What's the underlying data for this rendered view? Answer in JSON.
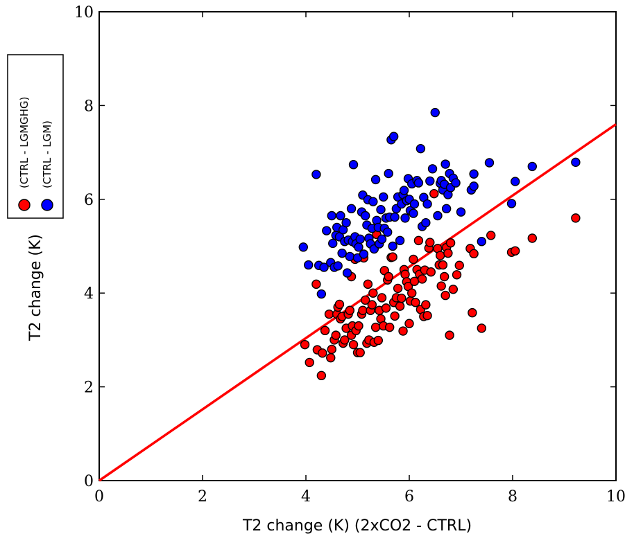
{
  "chart_data": {
    "type": "scatter",
    "xlabel": "T2 change (K) (2xCO2 - CTRL)",
    "ylabel": "T2 change (K)",
    "xlim": [
      0,
      10
    ],
    "ylim": [
      0,
      10
    ],
    "xticks": [
      "0",
      "2",
      "4",
      "6",
      "8",
      "10"
    ],
    "yticks": [
      "0",
      "2",
      "4",
      "6",
      "8",
      "10"
    ],
    "grid": false,
    "legend_placement": "outside-left",
    "fit_line": {
      "x": [
        0,
        10
      ],
      "y": [
        0,
        7.6
      ],
      "color": "#ff0000"
    },
    "series": [
      {
        "name": "(CTRL - LGMGHG)",
        "color": "#ff0000",
        "points": [
          [
            3.98,
            2.9
          ],
          [
            4.07,
            2.52
          ],
          [
            4.2,
            4.19
          ],
          [
            4.22,
            2.79
          ],
          [
            4.3,
            2.24
          ],
          [
            4.32,
            2.72
          ],
          [
            4.37,
            3.2
          ],
          [
            4.45,
            3.55
          ],
          [
            4.48,
            2.62
          ],
          [
            4.5,
            2.8
          ],
          [
            4.55,
            3.0
          ],
          [
            4.58,
            3.1
          ],
          [
            4.6,
            3.55
          ],
          [
            4.62,
            3.7
          ],
          [
            4.65,
            3.76
          ],
          [
            4.67,
            3.45
          ],
          [
            4.7,
            3.5
          ],
          [
            4.72,
            2.93
          ],
          [
            4.75,
            3.0
          ],
          [
            4.78,
            3.25
          ],
          [
            4.82,
            3.55
          ],
          [
            4.85,
            3.63
          ],
          [
            4.88,
            3.1
          ],
          [
            4.88,
            4.35
          ],
          [
            4.9,
            3.3
          ],
          [
            4.92,
            2.9
          ],
          [
            4.95,
            4.72
          ],
          [
            4.97,
            3.2
          ],
          [
            5.0,
            2.73
          ],
          [
            5.02,
            3.3
          ],
          [
            5.05,
            2.73
          ],
          [
            5.08,
            3.55
          ],
          [
            5.1,
            3.63
          ],
          [
            5.12,
            4.75
          ],
          [
            5.15,
            3.85
          ],
          [
            5.18,
            2.93
          ],
          [
            5.2,
            4.19
          ],
          [
            5.22,
            3.0
          ],
          [
            5.25,
            3.63
          ],
          [
            5.28,
            3.75
          ],
          [
            5.3,
            4.0
          ],
          [
            5.32,
            2.95
          ],
          [
            5.35,
            3.27
          ],
          [
            5.37,
            5.25
          ],
          [
            5.4,
            2.99
          ],
          [
            5.42,
            3.63
          ],
          [
            5.45,
            3.45
          ],
          [
            5.47,
            3.9
          ],
          [
            5.5,
            3.3
          ],
          [
            5.52,
            4.48
          ],
          [
            5.55,
            3.68
          ],
          [
            5.58,
            4.28
          ],
          [
            5.6,
            4.35
          ],
          [
            5.62,
            3.27
          ],
          [
            5.65,
            4.76
          ],
          [
            5.68,
            4.77
          ],
          [
            5.7,
            3.8
          ],
          [
            5.72,
            3.51
          ],
          [
            5.75,
            3.9
          ],
          [
            5.78,
            4.1
          ],
          [
            5.82,
            3.72
          ],
          [
            5.85,
            3.89
          ],
          [
            5.88,
            3.19
          ],
          [
            5.9,
            4.5
          ],
          [
            5.92,
            4.4
          ],
          [
            5.95,
            4.24
          ],
          [
            5.98,
            4.14
          ],
          [
            6.0,
            3.35
          ],
          [
            6.02,
            3.83
          ],
          [
            6.05,
            4.0
          ],
          [
            6.08,
            4.72
          ],
          [
            6.1,
            4.25
          ],
          [
            6.12,
            3.8
          ],
          [
            6.15,
            4.5
          ],
          [
            6.18,
            5.12
          ],
          [
            6.2,
            4.4
          ],
          [
            6.22,
            3.65
          ],
          [
            6.25,
            4.3
          ],
          [
            6.28,
            3.5
          ],
          [
            6.3,
            4.49
          ],
          [
            6.32,
            3.75
          ],
          [
            6.35,
            3.52
          ],
          [
            6.38,
            4.96
          ],
          [
            6.4,
            5.08
          ],
          [
            6.42,
            4.45
          ],
          [
            6.48,
            6.12
          ],
          [
            6.55,
            4.95
          ],
          [
            6.58,
            4.6
          ],
          [
            6.6,
            4.8
          ],
          [
            6.62,
            4.15
          ],
          [
            6.65,
            4.6
          ],
          [
            6.68,
            4.35
          ],
          [
            6.7,
            3.95
          ],
          [
            6.72,
            4.97
          ],
          [
            6.75,
            4.85
          ],
          [
            6.78,
            3.1
          ],
          [
            6.8,
            5.07
          ],
          [
            6.85,
            4.08
          ],
          [
            6.92,
            4.39
          ],
          [
            6.97,
            4.59
          ],
          [
            7.18,
            4.95
          ],
          [
            7.22,
            3.58
          ],
          [
            7.25,
            4.84
          ],
          [
            7.4,
            3.25
          ],
          [
            7.58,
            5.23
          ],
          [
            7.98,
            4.87
          ],
          [
            8.05,
            4.9
          ],
          [
            8.38,
            5.17
          ],
          [
            9.22,
            5.6
          ]
        ]
      },
      {
        "name": "(CTRL - LGM)",
        "color": "#0000ff",
        "points": [
          [
            3.95,
            4.98
          ],
          [
            4.05,
            4.6
          ],
          [
            4.2,
            6.53
          ],
          [
            4.25,
            4.59
          ],
          [
            4.3,
            3.98
          ],
          [
            4.35,
            4.55
          ],
          [
            4.4,
            5.33
          ],
          [
            4.48,
            4.65
          ],
          [
            4.5,
            5.65
          ],
          [
            4.52,
            5.06
          ],
          [
            4.55,
            4.55
          ],
          [
            4.58,
            5.23
          ],
          [
            4.6,
            5.4
          ],
          [
            4.62,
            4.58
          ],
          [
            4.65,
            5.2
          ],
          [
            4.67,
            5.65
          ],
          [
            4.7,
            4.85
          ],
          [
            4.72,
            5.35
          ],
          [
            4.75,
            5.1
          ],
          [
            4.78,
            5.5
          ],
          [
            4.8,
            4.43
          ],
          [
            4.82,
            5.13
          ],
          [
            4.85,
            4.78
          ],
          [
            4.88,
            5.8
          ],
          [
            4.9,
            5.1
          ],
          [
            4.92,
            6.74
          ],
          [
            4.95,
            5.2
          ],
          [
            4.97,
            5.05
          ],
          [
            5.0,
            4.75
          ],
          [
            5.02,
            4.98
          ],
          [
            5.05,
            5.15
          ],
          [
            5.08,
            5.73
          ],
          [
            5.1,
            6.09
          ],
          [
            5.12,
            4.83
          ],
          [
            5.15,
            5.65
          ],
          [
            5.18,
            5.45
          ],
          [
            5.2,
            5.99
          ],
          [
            5.22,
            5.17
          ],
          [
            5.25,
            5.05
          ],
          [
            5.28,
            5.38
          ],
          [
            5.3,
            5.95
          ],
          [
            5.32,
            4.94
          ],
          [
            5.35,
            6.42
          ],
          [
            5.37,
            5.55
          ],
          [
            5.4,
            5.4
          ],
          [
            5.42,
            5.05
          ],
          [
            5.45,
            5.78
          ],
          [
            5.47,
            5.15
          ],
          [
            5.5,
            6.05
          ],
          [
            5.52,
            5.38
          ],
          [
            5.55,
            5.6
          ],
          [
            5.58,
            5.3
          ],
          [
            5.6,
            6.55
          ],
          [
            5.62,
            5.62
          ],
          [
            5.65,
            7.27
          ],
          [
            5.68,
            5.0
          ],
          [
            5.7,
            7.34
          ],
          [
            5.72,
            5.62
          ],
          [
            5.75,
            5.8
          ],
          [
            5.78,
            6.05
          ],
          [
            5.82,
            5.12
          ],
          [
            5.85,
            5.9
          ],
          [
            5.88,
            6.1
          ],
          [
            5.9,
            6.19
          ],
          [
            5.92,
            5.6
          ],
          [
            5.95,
            5.97
          ],
          [
            5.98,
            6.44
          ],
          [
            6.0,
            6.0
          ],
          [
            6.02,
            5.76
          ],
          [
            6.05,
            6.33
          ],
          [
            6.08,
            5.7
          ],
          [
            6.1,
            5.9
          ],
          [
            6.15,
            6.4
          ],
          [
            6.18,
            6.35
          ],
          [
            6.22,
            7.08
          ],
          [
            6.25,
            5.42
          ],
          [
            6.28,
            6.04
          ],
          [
            6.32,
            5.5
          ],
          [
            6.35,
            5.9
          ],
          [
            6.4,
            6.39
          ],
          [
            6.45,
            6.65
          ],
          [
            6.5,
            7.85
          ],
          [
            6.55,
            5.65
          ],
          [
            6.6,
            6.34
          ],
          [
            6.62,
            6.4
          ],
          [
            6.65,
            6.2
          ],
          [
            6.68,
            6.32
          ],
          [
            6.7,
            6.75
          ],
          [
            6.72,
            5.8
          ],
          [
            6.75,
            6.1
          ],
          [
            6.78,
            6.55
          ],
          [
            6.8,
            6.25
          ],
          [
            6.85,
            6.45
          ],
          [
            6.9,
            6.35
          ],
          [
            7.0,
            5.73
          ],
          [
            7.2,
            6.2
          ],
          [
            7.25,
            6.54
          ],
          [
            7.25,
            6.28
          ],
          [
            7.4,
            5.1
          ],
          [
            7.55,
            6.78
          ],
          [
            7.98,
            5.91
          ],
          [
            8.05,
            6.38
          ],
          [
            8.38,
            6.7
          ],
          [
            9.22,
            6.79
          ]
        ]
      }
    ]
  }
}
